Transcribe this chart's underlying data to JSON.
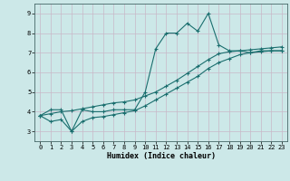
{
  "xlabel": "Humidex (Indice chaleur)",
  "background_color": "#cce8e8",
  "grid_color": "#c8b8c8",
  "line_color": "#1a6e6e",
  "xlim": [
    -0.5,
    23.5
  ],
  "ylim": [
    2.5,
    9.5
  ],
  "xticks": [
    0,
    1,
    2,
    3,
    4,
    5,
    6,
    7,
    8,
    9,
    10,
    11,
    12,
    13,
    14,
    15,
    16,
    17,
    18,
    19,
    20,
    21,
    22,
    23
  ],
  "yticks": [
    3,
    4,
    5,
    6,
    7,
    8,
    9
  ],
  "line1_x": [
    0,
    1,
    2,
    3,
    4,
    5,
    6,
    7,
    8,
    9,
    10,
    11,
    12,
    13,
    14,
    15,
    16,
    17,
    18,
    19,
    20,
    21,
    22,
    23
  ],
  "line1_y": [
    3.8,
    4.1,
    4.1,
    3.0,
    4.1,
    4.0,
    4.0,
    4.1,
    4.1,
    4.1,
    5.0,
    7.2,
    8.0,
    8.0,
    8.5,
    8.1,
    9.0,
    7.4,
    7.1,
    7.1,
    7.0,
    7.1,
    7.1,
    7.1
  ],
  "line2_x": [
    0,
    1,
    2,
    3,
    4,
    5,
    6,
    7,
    8,
    9,
    10,
    11,
    12,
    13,
    14,
    15,
    16,
    17,
    18,
    19,
    20,
    21,
    22,
    23
  ],
  "line2_y": [
    3.8,
    3.9,
    4.0,
    4.05,
    4.15,
    4.25,
    4.35,
    4.45,
    4.5,
    4.6,
    4.8,
    5.0,
    5.3,
    5.6,
    5.95,
    6.3,
    6.65,
    6.95,
    7.05,
    7.1,
    7.15,
    7.2,
    7.25,
    7.3
  ],
  "line3_x": [
    0,
    1,
    2,
    3,
    4,
    5,
    6,
    7,
    8,
    9,
    10,
    11,
    12,
    13,
    14,
    15,
    16,
    17,
    18,
    19,
    20,
    21,
    22,
    23
  ],
  "line3_y": [
    3.8,
    3.5,
    3.6,
    3.0,
    3.5,
    3.7,
    3.75,
    3.85,
    3.95,
    4.05,
    4.3,
    4.6,
    4.9,
    5.2,
    5.5,
    5.8,
    6.2,
    6.5,
    6.7,
    6.9,
    7.0,
    7.05,
    7.1,
    7.1
  ]
}
